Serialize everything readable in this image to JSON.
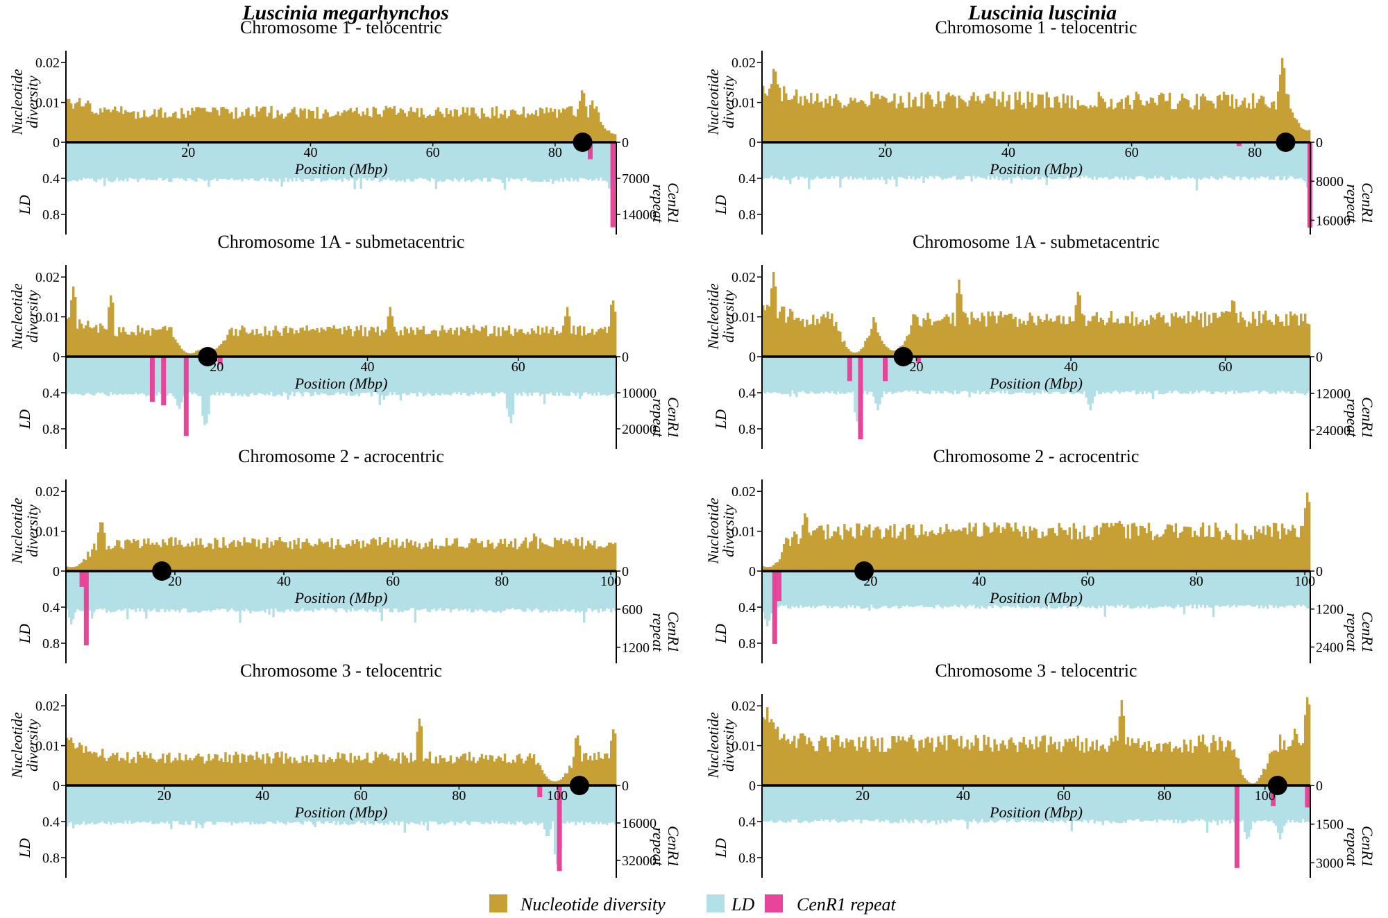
{
  "species": [
    "Luscinia megarhynchos",
    "Luscinia luscinia"
  ],
  "colors": {
    "nucleotide_diversity": "#C6A035",
    "ld": "#B2E0E6",
    "cenr1": "#E8449A",
    "axis": "#000000",
    "centromere": "#000000"
  },
  "legend": [
    "Nucleotide diversity",
    "LD",
    "CenR1 repeat"
  ],
  "chart_data": [
    {
      "type": "bar",
      "species": "Luscinia megarhynchos",
      "title": "Chromosome 1 - telocentric",
      "xlabel": "Position (Mbp)",
      "ylabel_top": "Nucleotide diversity",
      "ylabel_bottom": "LD",
      "ylabel_right": "CenR1 repeat",
      "xlim": [
        0,
        90
      ],
      "xticks": [
        "20",
        "40",
        "60",
        "80"
      ],
      "xtick_values": [
        20,
        40,
        60,
        80
      ],
      "pi_ylim": [
        0,
        0.023
      ],
      "pi_ticks": [
        "0.02",
        "0.01",
        "0"
      ],
      "pi_tick_values": [
        0.02,
        0.01,
        0
      ],
      "ld_ylim": [
        0,
        1
      ],
      "ld_ticks": [
        "0.4",
        "0.8"
      ],
      "ld_tick_values": [
        0.4,
        0.8
      ],
      "cen_ylim": [
        0,
        17500
      ],
      "cen_ticks": [
        "0",
        "7000",
        "14000"
      ],
      "cen_tick_values": [
        0,
        7000,
        14000
      ],
      "centromere": 84.5,
      "cenr1": [
        {
          "pos": 85.8,
          "count": 3300
        },
        {
          "pos": 89.5,
          "count": 16500
        }
      ],
      "pi_profile": {
        "base": 0.0075,
        "start": 0.0105,
        "peaks": [
          [
            84.5,
            0.014
          ],
          [
            86,
            0.011
          ]
        ],
        "dips": [
          [
            90,
            0.002
          ]
        ]
      },
      "ld_profile": {
        "base": 0.42,
        "peaks": [
          [
            89,
            0.55
          ]
        ]
      }
    },
    {
      "type": "bar",
      "species": "Luscinia luscinia",
      "title": "Chromosome 1 - telocentric",
      "xlabel": "Position (Mbp)",
      "ylabel_top": "Nucleotide diversity",
      "ylabel_bottom": "LD",
      "ylabel_right": "CenR1 repeat",
      "xlim": [
        0,
        89
      ],
      "xticks": [
        "20",
        "40",
        "60",
        "80"
      ],
      "xtick_values": [
        20,
        40,
        60,
        80
      ],
      "pi_ylim": [
        0,
        0.023
      ],
      "pi_ticks": [
        "0.02",
        "0.01",
        "0"
      ],
      "pi_tick_values": [
        0.02,
        0.01,
        0
      ],
      "ld_ylim": [
        0,
        1
      ],
      "ld_ticks": [
        "0.4",
        "0.8"
      ],
      "ld_tick_values": [
        0.4,
        0.8
      ],
      "cen_ylim": [
        0,
        18500
      ],
      "cen_ticks": [
        "0",
        "8000",
        "16000"
      ],
      "cen_tick_values": [
        0,
        8000,
        16000
      ],
      "centromere": 85,
      "cenr1": [
        {
          "pos": 77.5,
          "count": 800
        },
        {
          "pos": 85.3,
          "count": 1800
        },
        {
          "pos": 89,
          "count": 17500
        }
      ],
      "pi_profile": {
        "base": 0.0105,
        "start": 0.0135,
        "peaks": [
          [
            84.5,
            0.022
          ],
          [
            2,
            0.02
          ]
        ],
        "dips": [
          [
            88.5,
            0.003
          ]
        ]
      },
      "ld_profile": {
        "base": 0.4,
        "peaks": [
          [
            88.5,
            0.5
          ]
        ]
      }
    },
    {
      "type": "bar",
      "species": "Luscinia megarhynchos",
      "title": "Chromosome 1A - submetacentric",
      "xlabel": "Position (Mbp)",
      "ylabel_top": "Nucleotide diversity",
      "ylabel_bottom": "LD",
      "ylabel_right": "CenR1 repeat",
      "xlim": [
        0,
        73
      ],
      "xticks": [
        "20",
        "40",
        "60"
      ],
      "xtick_values": [
        20,
        40,
        60
      ],
      "pi_ylim": [
        0,
        0.023
      ],
      "pi_ticks": [
        "0.02",
        "0.01",
        "0"
      ],
      "pi_tick_values": [
        0.02,
        0.01,
        0
      ],
      "ld_ylim": [
        0,
        1
      ],
      "ld_ticks": [
        "0.4",
        "0.8"
      ],
      "ld_tick_values": [
        0.4,
        0.8
      ],
      "cen_ylim": [
        0,
        25000
      ],
      "cen_ticks": [
        "0",
        "10000",
        "20000"
      ],
      "cen_tick_values": [
        0,
        10000,
        20000
      ],
      "centromere": 18.8,
      "cenr1": [
        {
          "pos": 11.5,
          "count": 12500
        },
        {
          "pos": 13,
          "count": 13500
        },
        {
          "pos": 16,
          "count": 22000
        },
        {
          "pos": 20.5,
          "count": 2200
        }
      ],
      "pi_profile": {
        "base": 0.0065,
        "start": 0.009,
        "peaks": [
          [
            1,
            0.018
          ],
          [
            6,
            0.016
          ],
          [
            43,
            0.0125
          ],
          [
            66.5,
            0.0125
          ],
          [
            72.5,
            0.015
          ]
        ],
        "dips": [
          [
            16.5,
            0.0008
          ],
          [
            19,
            0.0015
          ]
        ]
      },
      "ld_profile": {
        "base": 0.42,
        "peaks": [
          [
            18.5,
            0.8
          ],
          [
            15,
            0.6
          ],
          [
            59,
            0.75
          ]
        ]
      }
    },
    {
      "type": "bar",
      "species": "Luscinia luscinia",
      "title": "Chromosome 1A - submetacentric",
      "xlabel": "Position (Mbp)",
      "ylabel_top": "Nucleotide diversity",
      "ylabel_bottom": "LD",
      "ylabel_right": "CenR1 repeat",
      "xlim": [
        0,
        71
      ],
      "xticks": [
        "20",
        "40",
        "60"
      ],
      "xtick_values": [
        20,
        40,
        60
      ],
      "pi_ylim": [
        0,
        0.023
      ],
      "pi_ticks": [
        "0.02",
        "0.01",
        "0"
      ],
      "pi_tick_values": [
        0.02,
        0.01,
        0
      ],
      "ld_ylim": [
        0,
        1
      ],
      "ld_ticks": [
        "0.4",
        "0.8"
      ],
      "ld_tick_values": [
        0.4,
        0.8
      ],
      "cen_ylim": [
        0,
        29500
      ],
      "cen_ticks": [
        "0",
        "12000",
        "24000"
      ],
      "cen_tick_values": [
        0,
        12000,
        24000
      ],
      "centromere": 18.3,
      "cenr1": [
        {
          "pos": 11.4,
          "count": 8000
        },
        {
          "pos": 12.8,
          "count": 27000
        },
        {
          "pos": 16,
          "count": 8000
        },
        {
          "pos": 20.3,
          "count": 2000
        }
      ],
      "pi_profile": {
        "base": 0.0095,
        "start": 0.012,
        "peaks": [
          [
            1.5,
            0.0215
          ],
          [
            25.5,
            0.0195
          ],
          [
            41,
            0.0175
          ],
          [
            61,
            0.0155
          ]
        ],
        "dips": [
          [
            12,
            0.001
          ],
          [
            17,
            0.0015
          ]
        ]
      },
      "ld_profile": {
        "base": 0.4,
        "peaks": [
          [
            12.5,
            0.8
          ],
          [
            15,
            0.6
          ],
          [
            42.5,
            0.6
          ]
        ]
      }
    },
    {
      "type": "bar",
      "species": "Luscinia megarhynchos",
      "title": "Chromosome 2 - acrocentric",
      "xlabel": "Position (Mbp)",
      "ylabel_top": "Nucleotide diversity",
      "ylabel_bottom": "LD",
      "ylabel_right": "CenR1 repeat",
      "xlim": [
        0,
        101
      ],
      "xticks": [
        "20",
        "40",
        "60",
        "80",
        "100"
      ],
      "xtick_values": [
        20,
        40,
        60,
        80,
        100
      ],
      "pi_ylim": [
        0,
        0.023
      ],
      "pi_ticks": [
        "0.02",
        "0.01",
        "0"
      ],
      "pi_tick_values": [
        0.02,
        0.01,
        0
      ],
      "ld_ylim": [
        0,
        1
      ],
      "ld_ticks": [
        "0.4",
        "0.8"
      ],
      "ld_tick_values": [
        0.4,
        0.8
      ],
      "cen_ylim": [
        0,
        1420
      ],
      "cen_ticks": [
        "0",
        "600",
        "1200"
      ],
      "cen_tick_values": [
        0,
        600,
        1200
      ],
      "centromere": 17.6,
      "cenr1": [
        {
          "pos": 3,
          "count": 250
        },
        {
          "pos": 3.8,
          "count": 1170
        }
      ],
      "pi_profile": {
        "base": 0.007,
        "start": 0.003,
        "peaks": [
          [
            6.5,
            0.0135
          ],
          [
            86,
            0.01
          ]
        ],
        "dips": [
          [
            1,
            0.001
          ]
        ]
      },
      "ld_profile": {
        "base": 0.44,
        "peaks": [
          [
            1,
            0.6
          ]
        ]
      }
    },
    {
      "type": "bar",
      "species": "Luscinia luscinia",
      "title": "Chromosome 2 - acrocentric",
      "xlabel": "Position (Mbp)",
      "ylabel_top": "Nucleotide diversity",
      "ylabel_bottom": "LD",
      "ylabel_right": "CenR1 repeat",
      "xlim": [
        0,
        101
      ],
      "xticks": [
        "20",
        "40",
        "60",
        "80",
        "100"
      ],
      "xtick_values": [
        20,
        40,
        60,
        80,
        100
      ],
      "pi_ylim": [
        0,
        0.023
      ],
      "pi_ticks": [
        "0.02",
        "0.01",
        "0"
      ],
      "pi_tick_values": [
        0.02,
        0.01,
        0
      ],
      "ld_ylim": [
        0,
        1
      ],
      "ld_ticks": [
        "0.4",
        "0.8"
      ],
      "ld_tick_values": [
        0.4,
        0.8
      ],
      "cen_ylim": [
        0,
        2850
      ],
      "cen_ticks": [
        "0",
        "1200",
        "2400"
      ],
      "cen_tick_values": [
        0,
        1200,
        2400
      ],
      "centromere": 18.8,
      "cenr1": [
        {
          "pos": 2.4,
          "count": 2300
        },
        {
          "pos": 3.2,
          "count": 950
        }
      ],
      "pi_profile": {
        "base": 0.01,
        "start": 0.004,
        "peaks": [
          [
            8,
            0.0155
          ],
          [
            100.5,
            0.0205
          ],
          [
            66,
            0.0135
          ]
        ],
        "dips": [
          [
            1,
            0.001
          ]
        ]
      },
      "ld_profile": {
        "base": 0.4,
        "peaks": [
          [
            1,
            0.62
          ]
        ]
      }
    },
    {
      "type": "bar",
      "species": "Luscinia megarhynchos",
      "title": "Chromosome 3 - telocentric",
      "xlabel": "Position (Mbp)",
      "ylabel_top": "Nucleotide diversity",
      "ylabel_bottom": "LD",
      "ylabel_right": "CenR1 repeat",
      "xlim": [
        0,
        112
      ],
      "xticks": [
        "20",
        "40",
        "60",
        "80",
        "100"
      ],
      "xtick_values": [
        20,
        40,
        60,
        80,
        100
      ],
      "pi_ylim": [
        0,
        0.023
      ],
      "pi_ticks": [
        "0.02",
        "0.01",
        "0"
      ],
      "pi_tick_values": [
        0.02,
        0.01,
        0
      ],
      "ld_ylim": [
        0,
        1
      ],
      "ld_ticks": [
        "0.4",
        "0.8"
      ],
      "ld_tick_values": [
        0.4,
        0.8
      ],
      "cen_ylim": [
        0,
        38500
      ],
      "cen_ticks": [
        "0",
        "16000",
        "32000"
      ],
      "cen_tick_values": [
        0,
        16000,
        32000
      ],
      "centromere": 104.5,
      "cenr1": [
        {
          "pos": 96.5,
          "count": 5000
        },
        {
          "pos": 100.5,
          "count": 36500
        }
      ],
      "pi_profile": {
        "base": 0.007,
        "start": 0.011,
        "peaks": [
          [
            72,
            0.0175
          ],
          [
            111.5,
            0.015
          ],
          [
            104,
            0.0135
          ]
        ],
        "dips": [
          [
            99.5,
            0.001
          ]
        ]
      },
      "ld_profile": {
        "base": 0.42,
        "peaks": [
          [
            100,
            0.9
          ],
          [
            98,
            0.6
          ]
        ]
      }
    },
    {
      "type": "bar",
      "species": "Luscinia luscinia",
      "title": "Chromosome 3 - telocentric",
      "xlabel": "Position (Mbp)",
      "ylabel_top": "Nucleotide diversity",
      "ylabel_bottom": "LD",
      "ylabel_right": "CenR1 repeat",
      "xlim": [
        0,
        109
      ],
      "xticks": [
        "20",
        "40",
        "60",
        "80",
        "100"
      ],
      "xtick_values": [
        20,
        40,
        60,
        80,
        100
      ],
      "pi_ylim": [
        0,
        0.023
      ],
      "pi_ticks": [
        "0.02",
        "0.01",
        "0"
      ],
      "pi_tick_values": [
        0.02,
        0.01,
        0
      ],
      "ld_ylim": [
        0,
        1
      ],
      "ld_ticks": [
        "0.4",
        "0.8"
      ],
      "ld_tick_values": [
        0.4,
        0.8
      ],
      "cen_ylim": [
        0,
        3500
      ],
      "cen_ticks": [
        "0",
        "1500",
        "3000"
      ],
      "cen_tick_values": [
        0,
        1500,
        3000
      ],
      "centromere": 102.5,
      "cenr1": [
        {
          "pos": 94.5,
          "count": 3200
        },
        {
          "pos": 101.7,
          "count": 800
        },
        {
          "pos": 108.5,
          "count": 850
        }
      ],
      "pi_profile": {
        "base": 0.0105,
        "start": 0.0155,
        "peaks": [
          [
            1,
            0.02
          ],
          [
            71.5,
            0.0215
          ],
          [
            108.5,
            0.0235
          ],
          [
            106,
            0.015
          ]
        ],
        "dips": [
          [
            97.5,
            0.0005
          ]
        ]
      },
      "ld_profile": {
        "base": 0.4,
        "peaks": [
          [
            96.5,
            0.62
          ],
          [
            103,
            0.6
          ]
        ]
      }
    }
  ]
}
